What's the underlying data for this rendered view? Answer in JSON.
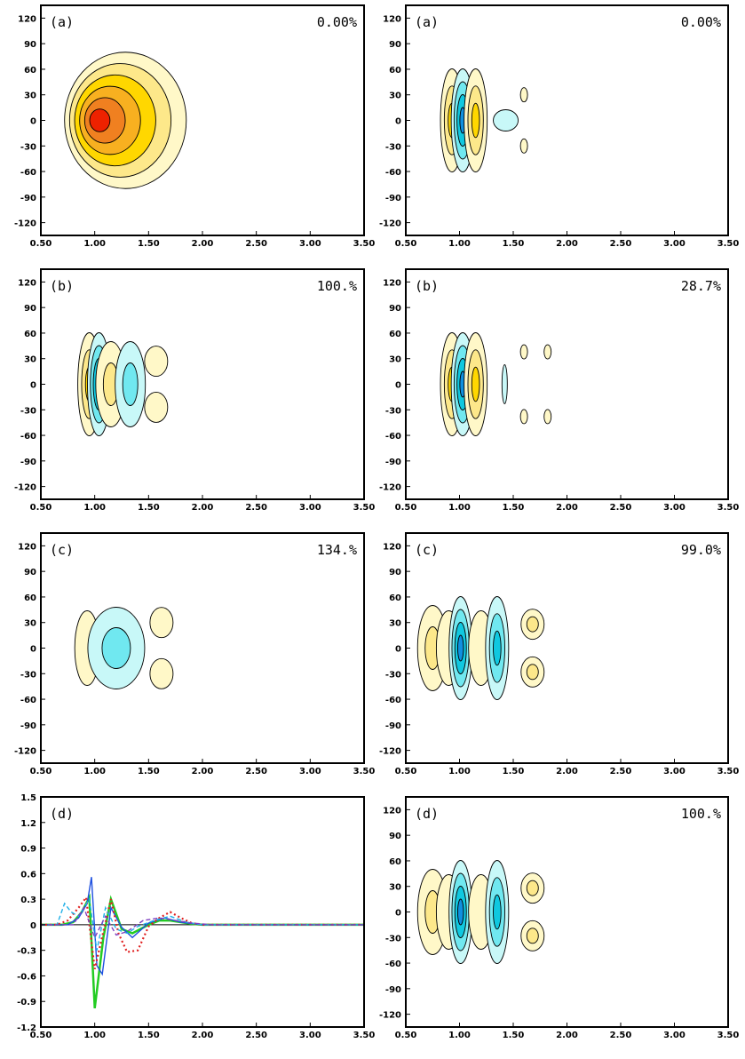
{
  "figure": {
    "panels": [
      {
        "label": "(a)",
        "percent": "0.00%"
      },
      {
        "label": "(a)",
        "percent": "0.00%"
      },
      {
        "label": "(b)",
        "percent": "100.%"
      },
      {
        "label": "(b)",
        "percent": "28.7%"
      },
      {
        "label": "(c)",
        "percent": "134.%"
      },
      {
        "label": "(c)",
        "percent": "99.0%"
      },
      {
        "label": "(d)",
        "percent": ""
      },
      {
        "label": "(d)",
        "percent": "100.%"
      }
    ]
  },
  "colors": {
    "pos1": "#fff8c8",
    "pos2": "#fde88a",
    "pos3": "#ffd700",
    "pos4": "#f8b020",
    "pos5": "#f08020",
    "pos6": "#ee2200",
    "neg1": "#c8f8f8",
    "neg2": "#70e8f0",
    "neg3": "#10c8e0",
    "neg4": "#1090e0",
    "line_green": "#22cc22",
    "line_blue": "#1e50e0",
    "line_red": "#e02020",
    "line_cyan": "#20b0e8",
    "line_purple": "#8040c0"
  },
  "chart_data": [
    {
      "type": "contour",
      "label": "(a)",
      "annotation": "0.00%",
      "xlim": [
        0.5,
        3.5
      ],
      "ylim": [
        -135,
        135
      ],
      "xticks": [
        "0.50",
        "1.00",
        "1.50",
        "2.00",
        "2.50",
        "3.00",
        "3.50"
      ],
      "yticks": [
        "120",
        "90",
        "60",
        "30",
        "0",
        "-30",
        "-60",
        "-90",
        "-120"
      ],
      "features": [
        {
          "x": 1.0,
          "y": 0,
          "sign": "positive",
          "peak_level": 6,
          "extent_x": [
            0.72,
            1.85
          ],
          "extent_y": [
            -80,
            80
          ]
        }
      ]
    },
    {
      "type": "contour",
      "label": "(a)",
      "annotation": "0.00%",
      "xlim": [
        0.5,
        3.5
      ],
      "ylim": [
        -135,
        135
      ],
      "xticks": [
        "0.50",
        "1.00",
        "1.50",
        "2.00",
        "2.50",
        "3.00",
        "3.50"
      ],
      "yticks": [
        "120",
        "90",
        "60",
        "30",
        "0",
        "-30",
        "-60",
        "-90",
        "-120"
      ],
      "features": [
        {
          "x": 0.93,
          "y": 0,
          "sign": "positive",
          "peak_level": 3
        },
        {
          "x": 1.03,
          "y": 0,
          "sign": "negative",
          "peak_level": 4
        },
        {
          "x": 1.15,
          "y": 0,
          "sign": "positive",
          "peak_level": 3
        },
        {
          "x": 1.43,
          "y": 0,
          "sign": "negative",
          "peak_level": 1
        },
        {
          "x": 1.6,
          "y": 30,
          "sign": "positive",
          "peak_level": 1
        },
        {
          "x": 1.6,
          "y": -30,
          "sign": "positive",
          "peak_level": 1
        }
      ]
    },
    {
      "type": "contour",
      "label": "(b)",
      "annotation": "100.%",
      "xlim": [
        0.5,
        3.5
      ],
      "ylim": [
        -135,
        135
      ],
      "xticks": [
        "0.50",
        "1.00",
        "1.50",
        "2.00",
        "2.50",
        "3.00",
        "3.50"
      ],
      "yticks": [
        "120",
        "90",
        "60",
        "30",
        "0",
        "-30",
        "-60",
        "-90",
        "-120"
      ],
      "features": [
        {
          "x": 0.95,
          "y": 0,
          "sign": "positive",
          "peak_level": 3
        },
        {
          "x": 1.04,
          "y": 0,
          "sign": "negative",
          "peak_level": 4
        },
        {
          "x": 1.15,
          "y": 0,
          "sign": "positive",
          "peak_level": 2
        },
        {
          "x": 1.33,
          "y": 0,
          "sign": "negative",
          "peak_level": 2
        },
        {
          "x": 1.57,
          "y": 27,
          "sign": "positive",
          "peak_level": 1
        },
        {
          "x": 1.57,
          "y": -27,
          "sign": "positive",
          "peak_level": 1
        }
      ]
    },
    {
      "type": "contour",
      "label": "(b)",
      "annotation": "28.7%",
      "xlim": [
        0.5,
        3.5
      ],
      "ylim": [
        -135,
        135
      ],
      "xticks": [
        "0.50",
        "1.00",
        "1.50",
        "2.00",
        "2.50",
        "3.00",
        "3.50"
      ],
      "yticks": [
        "120",
        "90",
        "60",
        "30",
        "0",
        "-30",
        "-60",
        "-90",
        "-120"
      ],
      "features": [
        {
          "x": 0.93,
          "y": 0,
          "sign": "positive",
          "peak_level": 3
        },
        {
          "x": 1.03,
          "y": 0,
          "sign": "negative",
          "peak_level": 4
        },
        {
          "x": 1.15,
          "y": 0,
          "sign": "positive",
          "peak_level": 3
        },
        {
          "x": 1.42,
          "y": 0,
          "sign": "negative",
          "peak_level": 1
        },
        {
          "x": 1.6,
          "y": 38,
          "sign": "positive",
          "peak_level": 1
        },
        {
          "x": 1.82,
          "y": 38,
          "sign": "positive",
          "peak_level": 1
        },
        {
          "x": 1.6,
          "y": -38,
          "sign": "positive",
          "peak_level": 1
        },
        {
          "x": 1.82,
          "y": -38,
          "sign": "positive",
          "peak_level": 1
        }
      ]
    },
    {
      "type": "contour",
      "label": "(c)",
      "annotation": "134.%",
      "xlim": [
        0.5,
        3.5
      ],
      "ylim": [
        -135,
        135
      ],
      "xticks": [
        "0.50",
        "1.00",
        "1.50",
        "2.00",
        "2.50",
        "3.00",
        "3.50"
      ],
      "yticks": [
        "120",
        "90",
        "60",
        "30",
        "0",
        "-30",
        "-60",
        "-90",
        "-120"
      ],
      "features": [
        {
          "x": 0.93,
          "y": 0,
          "sign": "positive",
          "peak_level": 1
        },
        {
          "x": 1.2,
          "y": 0,
          "sign": "negative",
          "peak_level": 2
        },
        {
          "x": 1.62,
          "y": 30,
          "sign": "positive",
          "peak_level": 1
        },
        {
          "x": 1.62,
          "y": -30,
          "sign": "positive",
          "peak_level": 1
        }
      ]
    },
    {
      "type": "contour",
      "label": "(c)",
      "annotation": "99.0%",
      "xlim": [
        0.5,
        3.5
      ],
      "ylim": [
        -135,
        135
      ],
      "xticks": [
        "0.50",
        "1.00",
        "1.50",
        "2.00",
        "2.50",
        "3.00",
        "3.50"
      ],
      "yticks": [
        "120",
        "90",
        "60",
        "30",
        "0",
        "-30",
        "-60",
        "-90",
        "-120"
      ],
      "features": [
        {
          "x": 0.75,
          "y": 0,
          "sign": "positive",
          "peak_level": 2
        },
        {
          "x": 0.9,
          "y": 0,
          "sign": "positive",
          "peak_level": 1
        },
        {
          "x": 1.01,
          "y": 0,
          "sign": "negative",
          "peak_level": 4
        },
        {
          "x": 1.2,
          "y": 0,
          "sign": "positive",
          "peak_level": 1
        },
        {
          "x": 1.35,
          "y": 0,
          "sign": "negative",
          "peak_level": 3
        },
        {
          "x": 1.68,
          "y": 28,
          "sign": "positive",
          "peak_level": 2
        },
        {
          "x": 1.68,
          "y": -28,
          "sign": "positive",
          "peak_level": 2
        }
      ]
    },
    {
      "type": "line",
      "label": "(d)",
      "xlim": [
        0.5,
        3.5
      ],
      "ylim": [
        -1.2,
        1.5
      ],
      "xticks": [
        "0.50",
        "1.00",
        "1.50",
        "2.00",
        "2.50",
        "3.00",
        "3.50"
      ],
      "yticks": [
        "1.5",
        "1.2",
        "0.9",
        "0.6",
        "0.3",
        "0",
        "-0.3",
        "-0.6",
        "-0.9",
        "-1.2"
      ],
      "series": [
        {
          "color": "#22cc22",
          "style": "solid",
          "x": [
            0.5,
            0.7,
            0.8,
            0.88,
            0.95,
            1.0,
            1.08,
            1.15,
            1.25,
            1.35,
            1.5,
            1.6,
            1.7,
            1.8,
            1.9,
            2.0,
            2.5,
            3.5
          ],
          "y": [
            0,
            0,
            0.03,
            0.15,
            0.32,
            -0.98,
            -0.15,
            0.3,
            -0.05,
            -0.1,
            0,
            0.05,
            0.05,
            0.03,
            0.01,
            0,
            0,
            0
          ]
        },
        {
          "color": "#1e50e0",
          "style": "solid",
          "x": [
            0.5,
            0.75,
            0.85,
            0.93,
            0.97,
            1.02,
            1.07,
            1.15,
            1.25,
            1.35,
            1.5,
            1.65,
            1.8,
            2.0,
            2.5,
            3.5
          ],
          "y": [
            0,
            0,
            0.08,
            0.25,
            0.56,
            -0.48,
            -0.58,
            0.2,
            -0.03,
            -0.15,
            0.02,
            0.08,
            0.03,
            0,
            0,
            0
          ]
        },
        {
          "color": "#e02020",
          "style": "dotted",
          "x": [
            0.5,
            0.65,
            0.75,
            0.85,
            0.92,
            1.0,
            1.08,
            1.15,
            1.22,
            1.3,
            1.4,
            1.5,
            1.6,
            1.7,
            1.8,
            1.9,
            2.0,
            2.5,
            3.5
          ],
          "y": [
            0,
            0,
            0.05,
            0.2,
            0.32,
            -0.52,
            -0.08,
            0.3,
            -0.1,
            -0.32,
            -0.3,
            -0.02,
            0.08,
            0.15,
            0.08,
            0.02,
            0,
            0,
            0
          ]
        },
        {
          "color": "#20b0e8",
          "style": "dashed",
          "x": [
            0.5,
            0.65,
            0.72,
            0.78,
            0.85,
            0.95,
            1.02,
            1.1,
            1.2,
            1.3,
            1.4,
            1.55,
            1.7,
            1.85,
            2.0,
            3.5
          ],
          "y": [
            0,
            0,
            0.25,
            0.15,
            0.1,
            0.3,
            -0.3,
            0.2,
            -0.05,
            -0.1,
            -0.02,
            0.05,
            0.1,
            0.03,
            0,
            0
          ]
        },
        {
          "color": "#8040c0",
          "style": "dashed",
          "x": [
            0.5,
            0.8,
            0.9,
            1.0,
            1.1,
            1.2,
            1.3,
            1.45,
            1.6,
            1.75,
            1.9,
            2.1,
            3.5
          ],
          "y": [
            0,
            0,
            0.2,
            -0.15,
            0.1,
            -0.12,
            -0.08,
            0.05,
            0.08,
            0.05,
            0.02,
            0,
            0
          ]
        }
      ]
    },
    {
      "type": "contour",
      "label": "(d)",
      "annotation": "100.%",
      "xlim": [
        0.5,
        3.5
      ],
      "ylim": [
        -135,
        135
      ],
      "xticks": [
        "0.50",
        "1.00",
        "1.50",
        "2.00",
        "2.50",
        "3.00",
        "3.50"
      ],
      "yticks": [
        "120",
        "90",
        "60",
        "30",
        "0",
        "-30",
        "-60",
        "-90",
        "-120"
      ],
      "features": [
        {
          "x": 0.75,
          "y": 0,
          "sign": "positive",
          "peak_level": 2
        },
        {
          "x": 0.9,
          "y": 0,
          "sign": "positive",
          "peak_level": 1
        },
        {
          "x": 1.01,
          "y": 0,
          "sign": "negative",
          "peak_level": 4
        },
        {
          "x": 1.2,
          "y": 0,
          "sign": "positive",
          "peak_level": 1
        },
        {
          "x": 1.35,
          "y": 0,
          "sign": "negative",
          "peak_level": 3
        },
        {
          "x": 1.68,
          "y": 28,
          "sign": "positive",
          "peak_level": 2
        },
        {
          "x": 1.68,
          "y": -28,
          "sign": "positive",
          "peak_level": 2
        }
      ]
    }
  ]
}
